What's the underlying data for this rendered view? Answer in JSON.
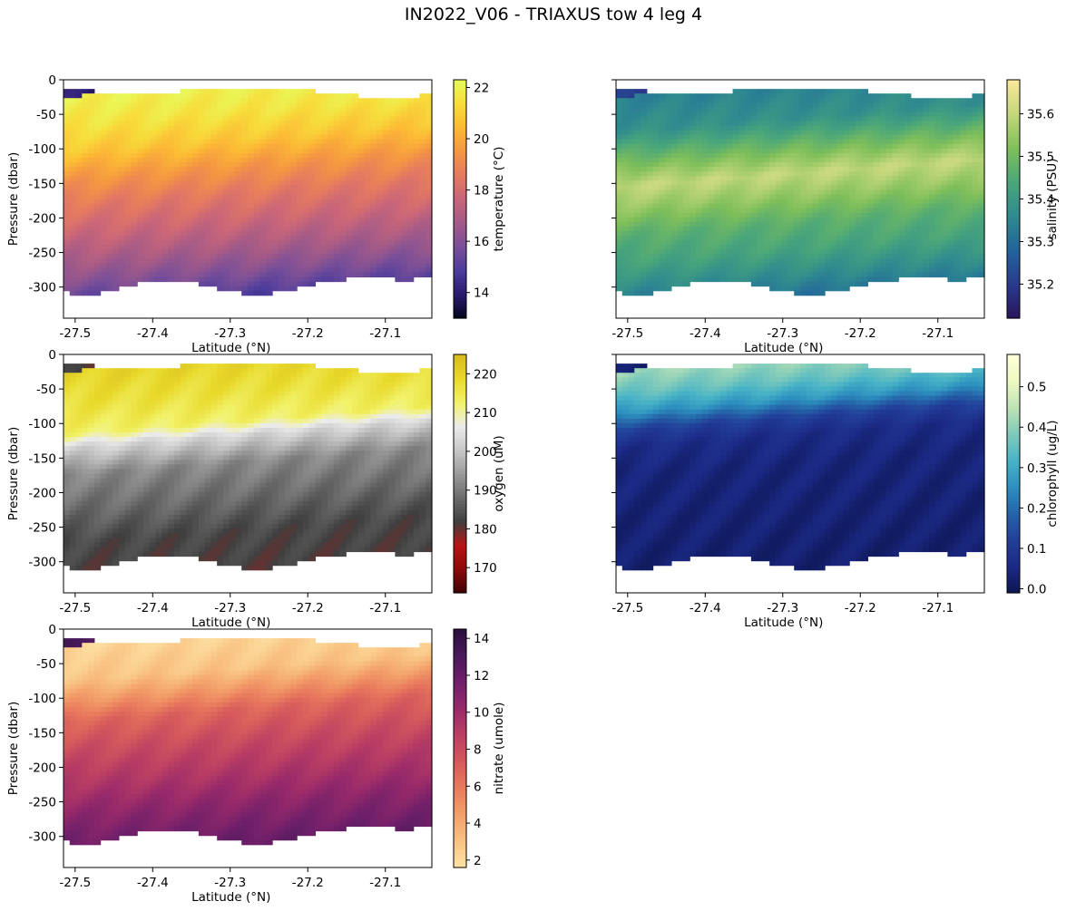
{
  "figure": {
    "title": "IN2022_V06 - TRIAXUS tow 4 leg 4"
  },
  "chart_data": [
    {
      "type": "heatmap",
      "variable": "temperature",
      "xlabel": "Latitude (°N)",
      "ylabel": "Pressure (dbar)",
      "xlim": [
        -27.515,
        -27.04
      ],
      "ylim": [
        -345,
        0
      ],
      "xticks": [
        "-27.5",
        "-27.4",
        "-27.3",
        "-27.2",
        "-27.1"
      ],
      "yticks": [
        "0",
        "-50",
        "-100",
        "-150",
        "-200",
        "-250",
        "-300"
      ],
      "colorbar": {
        "label": "temperature (°C)",
        "range": [
          13.0,
          22.3
        ],
        "ticks": [
          "14",
          "16",
          "18",
          "20",
          "22"
        ],
        "colors": [
          "#03051a",
          "#2a1a6e",
          "#4c3c9c",
          "#7a4f98",
          "#a25a88",
          "#c8657a",
          "#e57961",
          "#f49643",
          "#fcb835",
          "#f7dc3b",
          "#e8fa5b"
        ]
      },
      "profile": [
        {
          "p": 0,
          "v": 22.0
        },
        {
          "p": -40,
          "v": 21.6
        },
        {
          "p": -80,
          "v": 20.8
        },
        {
          "p": -120,
          "v": 19.5
        },
        {
          "p": -160,
          "v": 18.5
        },
        {
          "p": -200,
          "v": 17.7
        },
        {
          "p": -240,
          "v": 16.8
        },
        {
          "p": -270,
          "v": 16.0
        },
        {
          "p": -300,
          "v": 15.1
        },
        {
          "p": -345,
          "v": 14.0
        }
      ]
    },
    {
      "type": "heatmap",
      "variable": "salinity",
      "xlabel": "Latitude (°N)",
      "ylabel": "",
      "xlim": [
        -27.515,
        -27.04
      ],
      "ylim": [
        -345,
        0
      ],
      "xticks": [
        "-27.5",
        "-27.4",
        "-27.3",
        "-27.2",
        "-27.1"
      ],
      "yticks": [],
      "colorbar": {
        "label": "salinity (PSU)",
        "range": [
          35.12,
          35.68
        ],
        "ticks": [
          "35.2",
          "35.3",
          "35.4",
          "35.5",
          "35.6"
        ],
        "colors": [
          "#29145a",
          "#2a3a8c",
          "#22649b",
          "#2f8a8f",
          "#4aa67a",
          "#7fbf5a",
          "#c3d77a",
          "#fbe89b"
        ]
      },
      "profile": [
        {
          "p": 0,
          "v": 35.34
        },
        {
          "p": -50,
          "v": 35.38
        },
        {
          "p": -100,
          "v": 35.52
        },
        {
          "p": -130,
          "v": 35.6
        },
        {
          "p": -160,
          "v": 35.55
        },
        {
          "p": -200,
          "v": 35.47
        },
        {
          "p": -240,
          "v": 35.43
        },
        {
          "p": -280,
          "v": 35.36
        },
        {
          "p": -320,
          "v": 35.28
        },
        {
          "p": -345,
          "v": 35.2
        }
      ]
    },
    {
      "type": "heatmap",
      "variable": "oxygen",
      "xlabel": "Latitude (°N)",
      "ylabel": "Pressure (dbar)",
      "xlim": [
        -27.515,
        -27.04
      ],
      "ylim": [
        -345,
        0
      ],
      "xticks": [
        "-27.5",
        "-27.4",
        "-27.3",
        "-27.2",
        "-27.1"
      ],
      "yticks": [
        "0",
        "-50",
        "-100",
        "-150",
        "-200",
        "-250",
        "-300"
      ],
      "colorbar": {
        "label": "oxygen (uM)",
        "range": [
          163.5,
          225.0
        ],
        "ticks": [
          "170",
          "180",
          "190",
          "200",
          "210",
          "220"
        ],
        "colors": [
          "#3e0305",
          "#8a0a0a",
          "#b81414",
          "#3f3f3f",
          "#6b6b6b",
          "#9a9a9a",
          "#c7c7c7",
          "#ececec",
          "#f2f26a",
          "#e8d92b",
          "#d8ba1e"
        ]
      },
      "profile": [
        {
          "p": 0,
          "v": 220
        },
        {
          "p": -50,
          "v": 217
        },
        {
          "p": -90,
          "v": 213
        },
        {
          "p": -110,
          "v": 203
        },
        {
          "p": -150,
          "v": 192
        },
        {
          "p": -200,
          "v": 188
        },
        {
          "p": -250,
          "v": 183
        },
        {
          "p": -300,
          "v": 182
        },
        {
          "p": -345,
          "v": 181
        }
      ]
    },
    {
      "type": "heatmap",
      "variable": "chlorophyll",
      "xlabel": "Latitude (°N)",
      "ylabel": "",
      "xlim": [
        -27.515,
        -27.04
      ],
      "ylim": [
        -345,
        0
      ],
      "xticks": [
        "-27.5",
        "-27.4",
        "-27.3",
        "-27.2",
        "-27.1"
      ],
      "yticks": [],
      "colorbar": {
        "label": "chlorophyll (ug/L)",
        "range": [
          -0.01,
          0.58
        ],
        "ticks": [
          "0.0",
          "0.1",
          "0.2",
          "0.3",
          "0.4",
          "0.5"
        ],
        "colors": [
          "#0b1550",
          "#1c2a86",
          "#223f99",
          "#2563a8",
          "#2d8fbf",
          "#48b3c6",
          "#7fcabb",
          "#bde3b6",
          "#eef8c1",
          "#ffffd9"
        ]
      },
      "profile": [
        {
          "p": 0,
          "v": 0.42
        },
        {
          "p": -30,
          "v": 0.36
        },
        {
          "p": -60,
          "v": 0.26
        },
        {
          "p": -85,
          "v": 0.12
        },
        {
          "p": -110,
          "v": 0.06
        },
        {
          "p": -150,
          "v": 0.04
        },
        {
          "p": -250,
          "v": 0.03
        },
        {
          "p": -345,
          "v": 0.02
        }
      ]
    },
    {
      "type": "heatmap",
      "variable": "nitrate",
      "xlabel": "Latitude (°N)",
      "ylabel": "Pressure (dbar)",
      "xlim": [
        -27.515,
        -27.04
      ],
      "ylim": [
        -345,
        0
      ],
      "xticks": [
        "-27.5",
        "-27.4",
        "-27.3",
        "-27.2",
        "-27.1"
      ],
      "yticks": [
        "0",
        "-50",
        "-100",
        "-150",
        "-200",
        "-250",
        "-300"
      ],
      "colorbar": {
        "label": "nitrate (umole)",
        "range": [
          1.6,
          14.5
        ],
        "ticks": [
          "2",
          "4",
          "6",
          "8",
          "10",
          "12",
          "14"
        ],
        "colors": [
          "#fde4a6",
          "#f9c383",
          "#f3a06a",
          "#e97b5d",
          "#d65a5c",
          "#bb3f63",
          "#992a6a",
          "#72206a",
          "#4a1a5b",
          "#2b0f3e"
        ]
      },
      "profile": [
        {
          "p": 0,
          "v": 2.2
        },
        {
          "p": -50,
          "v": 3.0
        },
        {
          "p": -80,
          "v": 4.8
        },
        {
          "p": -110,
          "v": 6.8
        },
        {
          "p": -150,
          "v": 8.0
        },
        {
          "p": -200,
          "v": 9.3
        },
        {
          "p": -250,
          "v": 10.8
        },
        {
          "p": -300,
          "v": 12.0
        },
        {
          "p": -345,
          "v": 13.0
        }
      ]
    }
  ]
}
